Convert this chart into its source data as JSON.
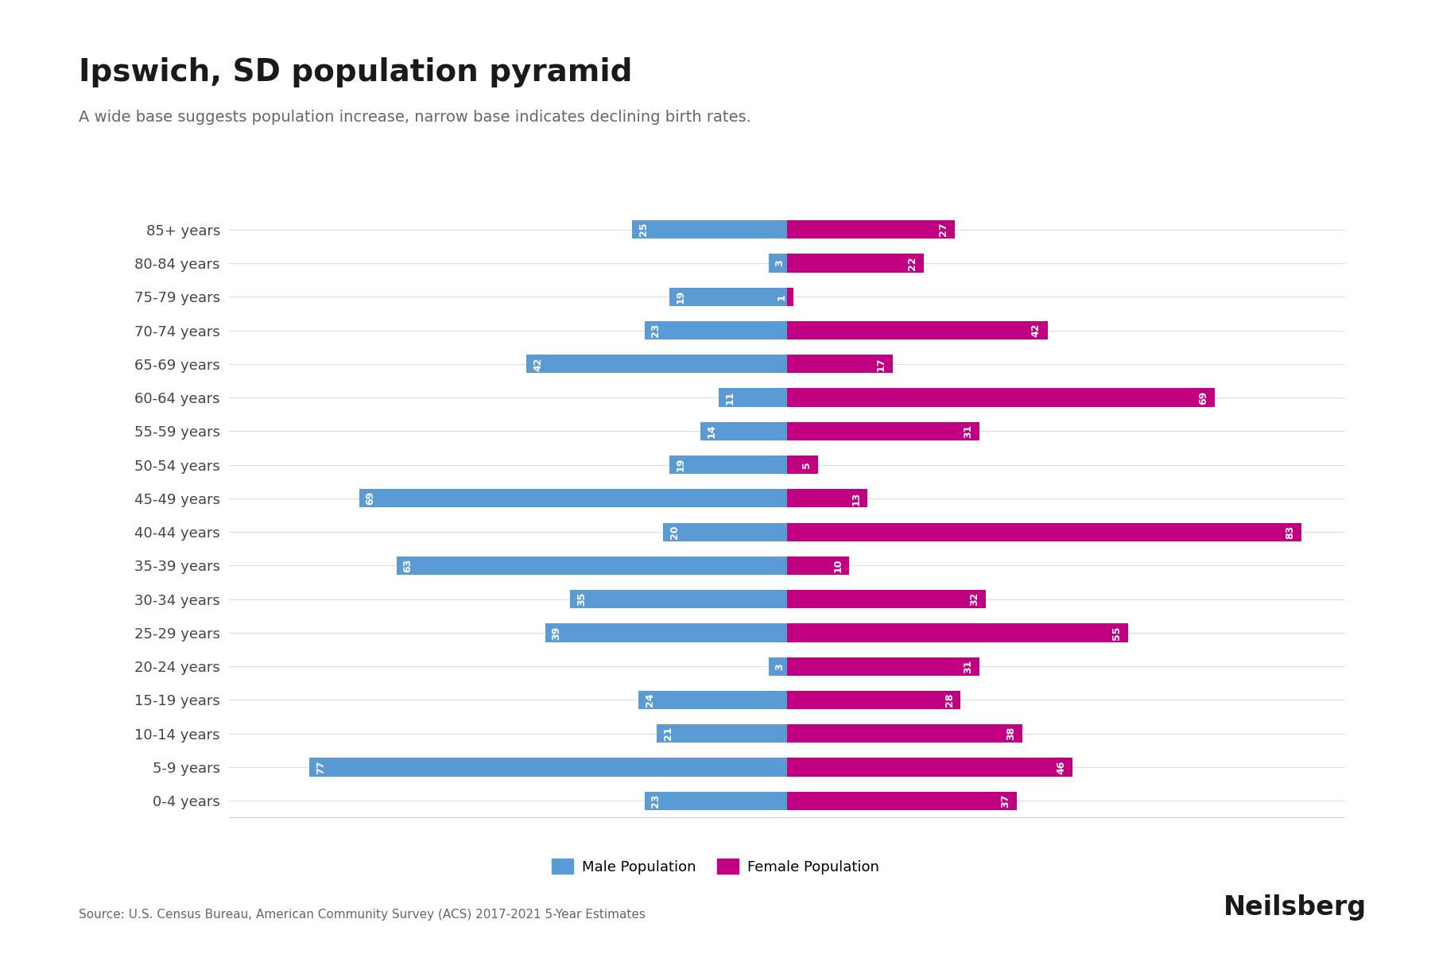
{
  "title": "Ipswich, SD population pyramid",
  "subtitle": "A wide base suggests population increase, narrow base indicates declining birth rates.",
  "source": "Source: U.S. Census Bureau, American Community Survey (ACS) 2017-2021 5-Year Estimates",
  "age_groups": [
    "0-4 years",
    "5-9 years",
    "10-14 years",
    "15-19 years",
    "20-24 years",
    "25-29 years",
    "30-34 years",
    "35-39 years",
    "40-44 years",
    "45-49 years",
    "50-54 years",
    "55-59 years",
    "60-64 years",
    "65-69 years",
    "70-74 years",
    "75-79 years",
    "80-84 years",
    "85+ years"
  ],
  "male": [
    23,
    77,
    21,
    24,
    3,
    39,
    35,
    63,
    20,
    69,
    19,
    14,
    11,
    42,
    23,
    19,
    3,
    25
  ],
  "female": [
    37,
    46,
    38,
    28,
    31,
    55,
    32,
    10,
    83,
    13,
    5,
    31,
    69,
    17,
    42,
    1,
    22,
    27
  ],
  "male_color": "#5b9bd5",
  "female_color": "#c00080",
  "background_color": "#ffffff",
  "grid_color": "#dddddd",
  "title_fontsize": 28,
  "subtitle_fontsize": 14,
  "label_fontsize": 13,
  "bar_label_fontsize": 9,
  "xlim": 90,
  "neilsberg_text": "Neilsberg"
}
